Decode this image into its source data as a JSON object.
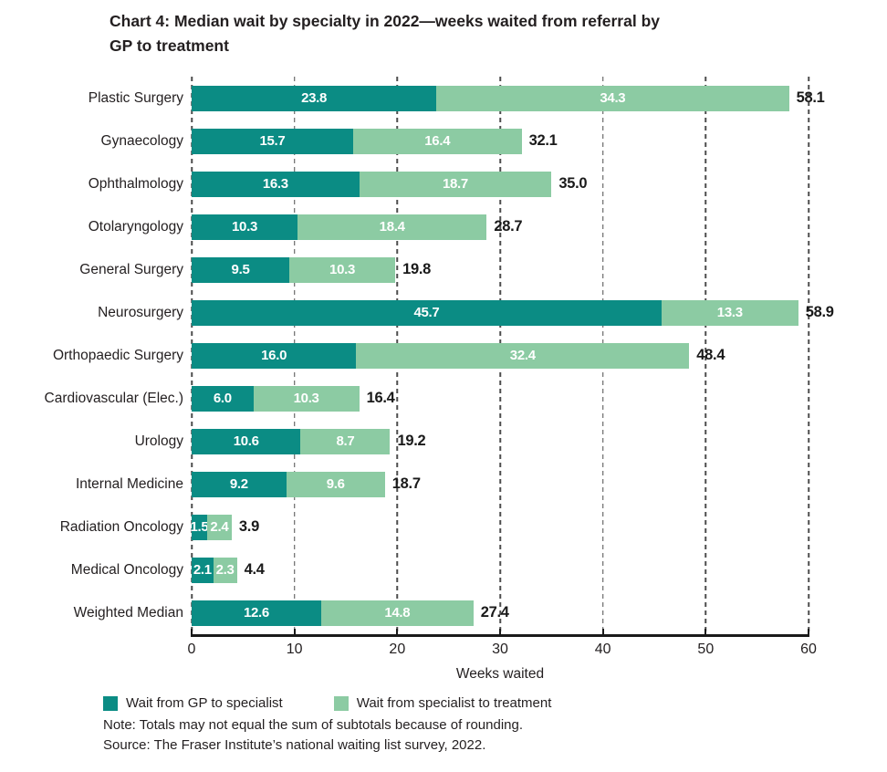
{
  "title_lines": [
    "Chart 4: Median wait by specialty in 2022—weeks waited from referral by",
    "GP to treatment"
  ],
  "chart_data": {
    "type": "bar",
    "orientation": "horizontal",
    "stacked": true,
    "title": "Chart 4: Median wait by specialty in 2022—weeks waited from referral by GP to treatment",
    "xlabel": "Weeks waited",
    "xlim": [
      0,
      60
    ],
    "xticks": [
      0,
      10,
      20,
      30,
      40,
      50,
      60
    ],
    "grid": "vertical-dashed",
    "legend_position": "bottom-left",
    "categories": [
      "Plastic Surgery",
      "Gynaecology",
      "Ophthalmology",
      "Otolaryngology",
      "General Surgery",
      "Neurosurgery",
      "Orthopaedic Surgery",
      "Cardiovascular (Elec.)",
      "Urology",
      "Internal Medicine",
      "Radiation Oncology",
      "Medical Oncology",
      "Weighted Median"
    ],
    "series": [
      {
        "name": "Wait from GP to specialist",
        "color": "#0B8C84",
        "values": [
          23.8,
          15.7,
          16.3,
          10.3,
          9.5,
          45.7,
          16.0,
          6.0,
          10.6,
          9.2,
          1.5,
          2.1,
          12.6
        ]
      },
      {
        "name": "Wait from specialist to treatment",
        "color": "#8CCBA3",
        "values": [
          34.3,
          16.4,
          18.7,
          18.4,
          10.3,
          13.3,
          32.4,
          10.3,
          8.7,
          9.6,
          2.4,
          2.3,
          14.8
        ]
      }
    ],
    "totals": [
      58.1,
      32.1,
      35.0,
      28.7,
      19.8,
      58.9,
      48.4,
      16.4,
      19.2,
      18.7,
      3.9,
      4.4,
      27.4
    ]
  },
  "note": "Note: Totals may not equal the sum of subtotals because of rounding.",
  "source": "Source: The Fraser Institute’s national waiting list survey, 2022.",
  "colors": {
    "bar_primary": "#0B8C84",
    "bar_secondary": "#8CCBA3",
    "text": "#231F20",
    "grid": "#4D4D4D"
  }
}
